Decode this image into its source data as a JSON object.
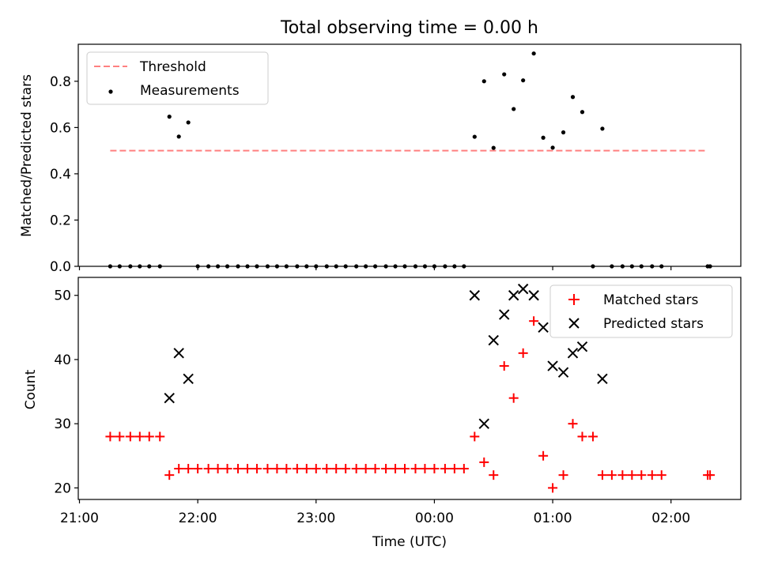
{
  "figure": {
    "title": "Total observing time = 0.00 h",
    "xlabel": "Time (UTC)",
    "x_ticks": [
      "21:00",
      "22:00",
      "23:00",
      "00:00",
      "01:00",
      "02:00"
    ],
    "x_tick_hours": [
      21,
      22,
      23,
      24,
      25,
      26
    ],
    "xlim_hours": [
      20.99,
      26.59
    ]
  },
  "chart_data": [
    {
      "type": "scatter",
      "ylabel": "Matched/Predicted stars",
      "ylim": [
        0,
        0.96
      ],
      "y_ticks": [
        "0.0",
        "0.2",
        "0.4",
        "0.6",
        "0.8"
      ],
      "y_tick_values": [
        0,
        0.2,
        0.4,
        0.6,
        0.8
      ],
      "legend_position": "upper left",
      "threshold": {
        "name": "Threshold",
        "value": 0.5,
        "x_range": [
          21.26,
          26.31
        ],
        "color": "#ff8080",
        "style": "dashed"
      },
      "series": [
        {
          "name": "Measurements",
          "color": "#000000",
          "x": [
            21.26,
            21.34,
            21.43,
            21.51,
            21.59,
            21.68,
            21.76,
            21.84,
            21.92,
            22.0,
            22.09,
            22.17,
            22.25,
            22.34,
            22.42,
            22.5,
            22.59,
            22.67,
            22.75,
            22.84,
            22.92,
            23.0,
            23.09,
            23.17,
            23.25,
            23.34,
            23.42,
            23.5,
            23.59,
            23.67,
            23.75,
            23.84,
            23.92,
            24.0,
            24.09,
            24.17,
            24.25,
            24.34,
            24.42,
            24.5,
            24.59,
            24.67,
            24.75,
            24.84,
            24.92,
            25.0,
            25.09,
            25.17,
            25.25,
            25.34,
            25.42,
            25.5,
            25.59,
            25.67,
            25.75,
            25.84,
            25.92,
            26.31,
            26.33
          ],
          "y": [
            0,
            0,
            0,
            0,
            0,
            0,
            0.647,
            0.561,
            0.622,
            0,
            0,
            0,
            0,
            0,
            0,
            0,
            0,
            0,
            0,
            0,
            0,
            0,
            0,
            0,
            0,
            0,
            0,
            0,
            0,
            0,
            0,
            0,
            0,
            0,
            0,
            0,
            0,
            0.56,
            0.8,
            0.512,
            0.83,
            0.68,
            0.804,
            0.92,
            0.556,
            0.513,
            0.579,
            0.732,
            0.667,
            0,
            0.595,
            0,
            0,
            0,
            0,
            0,
            0,
            0,
            0
          ]
        }
      ]
    },
    {
      "type": "scatter",
      "ylabel": "Count",
      "ylim": [
        18.2,
        52.8
      ],
      "y_ticks": [
        "20",
        "30",
        "40",
        "50"
      ],
      "y_tick_values": [
        20,
        30,
        40,
        50
      ],
      "legend_position": "upper right",
      "series": [
        {
          "name": "Matched stars",
          "color": "#ff0000",
          "marker": "plus",
          "x": [
            21.26,
            21.34,
            21.43,
            21.51,
            21.59,
            21.68,
            21.76,
            21.84,
            21.92,
            22.0,
            22.09,
            22.17,
            22.25,
            22.34,
            22.42,
            22.5,
            22.59,
            22.67,
            22.75,
            22.84,
            22.92,
            23.0,
            23.09,
            23.17,
            23.25,
            23.34,
            23.42,
            23.5,
            23.59,
            23.67,
            23.75,
            23.84,
            23.92,
            24.0,
            24.09,
            24.17,
            24.25,
            24.34,
            24.42,
            24.5,
            24.59,
            24.67,
            24.75,
            24.84,
            24.92,
            25.0,
            25.09,
            25.17,
            25.25,
            25.34,
            25.42,
            25.5,
            25.59,
            25.67,
            25.75,
            25.84,
            25.92,
            26.31,
            26.33
          ],
          "y": [
            28,
            28,
            28,
            28,
            28,
            28,
            22,
            23,
            23,
            23,
            23,
            23,
            23,
            23,
            23,
            23,
            23,
            23,
            23,
            23,
            23,
            23,
            23,
            23,
            23,
            23,
            23,
            23,
            23,
            23,
            23,
            23,
            23,
            23,
            23,
            23,
            23,
            28,
            24,
            22,
            39,
            34,
            41,
            46,
            25,
            20,
            22,
            30,
            28,
            28,
            22,
            22,
            22,
            22,
            22,
            22,
            22,
            22,
            22
          ]
        },
        {
          "name": "Predicted stars",
          "color": "#000000",
          "marker": "x",
          "x": [
            21.76,
            21.84,
            21.92,
            24.34,
            24.42,
            24.5,
            24.59,
            24.67,
            24.75,
            24.84,
            24.92,
            25.0,
            25.09,
            25.17,
            25.25,
            25.42
          ],
          "y": [
            34,
            41,
            37,
            50,
            30,
            43,
            47,
            50,
            51,
            50,
            45,
            39,
            38,
            41,
            42,
            37
          ]
        }
      ]
    }
  ]
}
